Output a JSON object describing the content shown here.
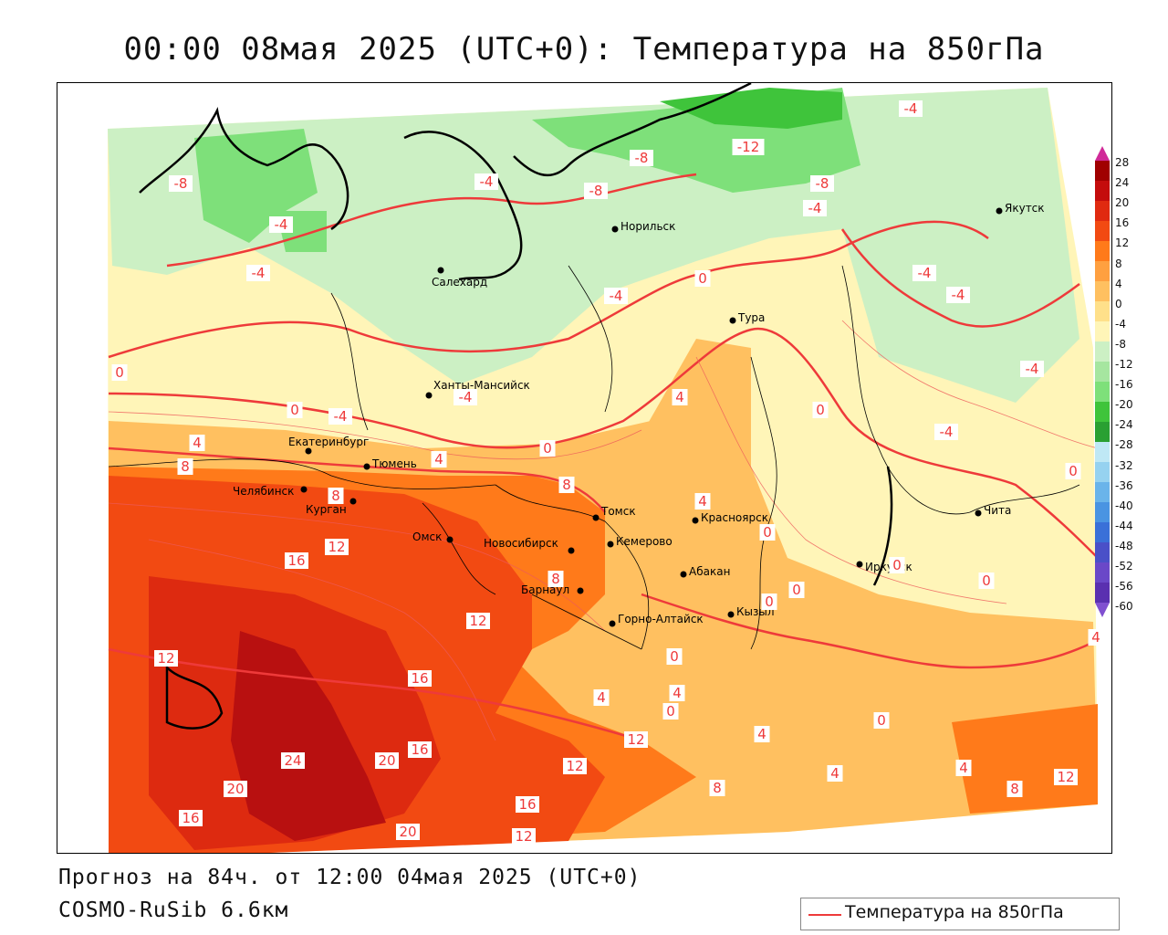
{
  "title": "00:00 08мая 2025 (UTC+0): Температура на 850гПа",
  "footer": {
    "forecast": "Прогноз на 84ч. от 12:00 04мая 2025 (UTC+0)",
    "model": "COSMO-RuSib 6.6км"
  },
  "legend": {
    "label": "Температура на 850гПа",
    "color": "#ee3a3a"
  },
  "colorbar": {
    "ticks": [
      "28",
      "24",
      "20",
      "16",
      "12",
      "8",
      "4",
      "0",
      "-4",
      "-8",
      "-12",
      "-16",
      "-20",
      "-24",
      "-28",
      "-32",
      "-36",
      "-40",
      "-44",
      "-48",
      "-52",
      "-56",
      "-60"
    ]
  },
  "cities": [
    {
      "name": "Якутск"
    },
    {
      "name": "Норильск"
    },
    {
      "name": "Салехард"
    },
    {
      "name": "Тура"
    },
    {
      "name": "Ханты-Мансийск"
    },
    {
      "name": "Екатеринбург"
    },
    {
      "name": "Тюмень"
    },
    {
      "name": "Челябинск"
    },
    {
      "name": "Курган"
    },
    {
      "name": "Омск"
    },
    {
      "name": "Новосибирск"
    },
    {
      "name": "Томск"
    },
    {
      "name": "Кемерово"
    },
    {
      "name": "Красноярск"
    },
    {
      "name": "Барнаул"
    },
    {
      "name": "Абакан"
    },
    {
      "name": "Горно-Алтайск"
    },
    {
      "name": "Кызыл"
    },
    {
      "name": "Иркутск"
    },
    {
      "name": "Чита"
    }
  ],
  "contour_labels": [
    "-4",
    "-12",
    "-8",
    "-8",
    "-4",
    "-4",
    "-8",
    "-8",
    "-4",
    "-4",
    "-4",
    "-4",
    "-4",
    "-4",
    "-4",
    "-4",
    "-4",
    "0",
    "0",
    "0",
    "0",
    "0",
    "0",
    "0",
    "0",
    "0",
    "0",
    "0",
    "0",
    "0",
    "0",
    "4",
    "4",
    "4",
    "4",
    "4",
    "4",
    "4",
    "4",
    "4",
    "4",
    "8",
    "8",
    "8",
    "8",
    "8",
    "8",
    "12",
    "12",
    "12",
    "12",
    "12",
    "12",
    "12",
    "16",
    "16",
    "16",
    "16",
    "16",
    "20",
    "20",
    "20",
    "24"
  ]
}
